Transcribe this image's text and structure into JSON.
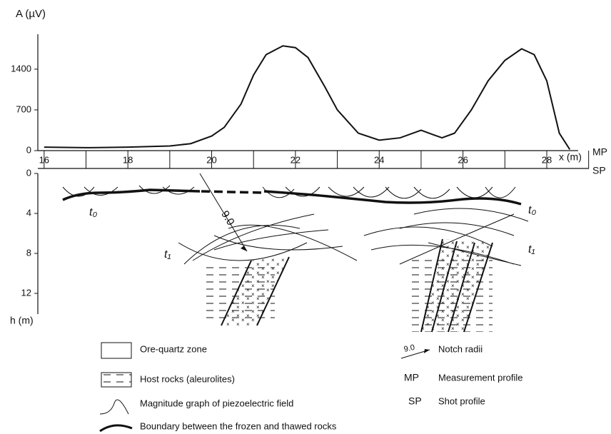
{
  "chart_data": {
    "type": "line",
    "y_label": "A (µV)",
    "x_label": "x (m)",
    "x": [
      16,
      17,
      18,
      19,
      19.5,
      20,
      20.3,
      20.7,
      21,
      21.3,
      21.7,
      22,
      22.3,
      22.7,
      23,
      23.5,
      24,
      24.5,
      25,
      25.3,
      25.5,
      25.8,
      26.2,
      26.6,
      27,
      27.4,
      27.7,
      28,
      28.3,
      28.55
    ],
    "series": [
      {
        "name": "Magnitude graph of piezoelectric field",
        "color": "#111111",
        "values": [
          60,
          50,
          60,
          80,
          120,
          250,
          400,
          800,
          1300,
          1650,
          1800,
          1770,
          1600,
          1100,
          700,
          300,
          180,
          220,
          350,
          270,
          220,
          300,
          700,
          1200,
          1550,
          1750,
          1650,
          1200,
          300,
          20
        ]
      }
    ],
    "xlim": [
      15.85,
      28.75
    ],
    "xticks": [
      16,
      18,
      20,
      22,
      24,
      26,
      28
    ],
    "ylim": [
      0,
      2000
    ],
    "yticks": [
      0,
      700,
      1400
    ]
  },
  "section": {
    "profile_labels": {
      "mp": "MP",
      "sp": "SP"
    },
    "h_label": "h (m)",
    "hlim": [
      0,
      14
    ],
    "hticks": [
      0,
      4,
      8,
      12
    ],
    "t0_left": "t₀",
    "t0_right": "t₀",
    "t1_left": "t₁",
    "t1_right": "t₁",
    "notch": "9.0"
  },
  "legend": {
    "ore": "Ore-quartz zone",
    "host": "Host rocks (aleurolites)",
    "magnitude": "Magnitude graph of piezoelectric field",
    "boundary": "Boundary between the frozen and thawed rocks",
    "notch_symbol": "9.0",
    "notch": "Notch radii",
    "mp": "MP",
    "mp_text": "Measurement profile",
    "sp": "SP",
    "sp_text": "Shot profile"
  }
}
